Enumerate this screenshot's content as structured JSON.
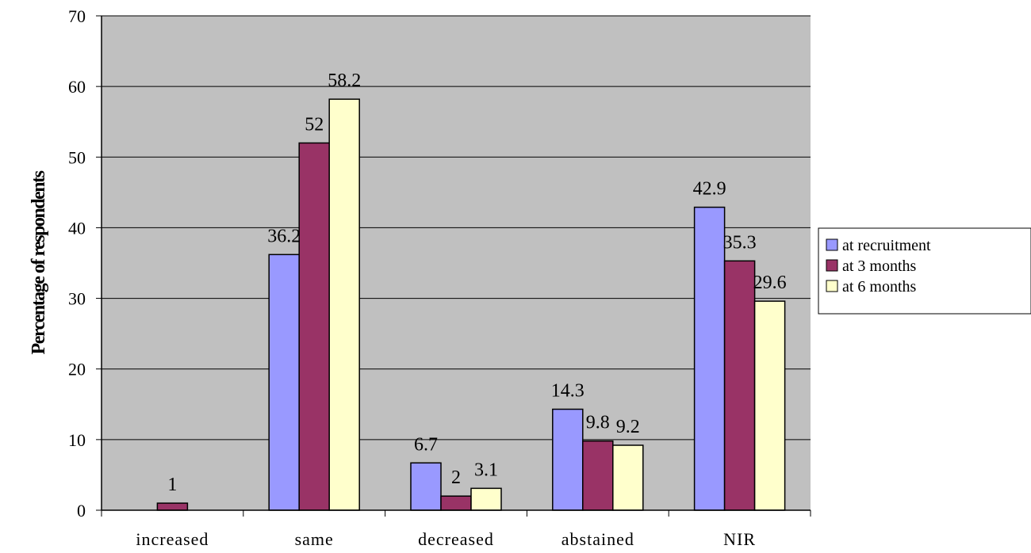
{
  "chart_data": {
    "type": "bar",
    "title": "",
    "xlabel": "",
    "ylabel": "Percentage of respondents",
    "ylim": [
      0,
      70
    ],
    "yticks": [
      0,
      10,
      20,
      30,
      40,
      50,
      60,
      70
    ],
    "grid": true,
    "legend_position": "right",
    "categories": [
      "increased",
      "same",
      "decreased",
      "abstained",
      "NIR"
    ],
    "series": [
      {
        "name": "at recruitment",
        "color": "#9999ff",
        "values": [
          null,
          36.2,
          6.7,
          14.3,
          42.9
        ]
      },
      {
        "name": "at 3 months",
        "color": "#993366",
        "values": [
          1,
          52,
          2,
          9.8,
          35.3
        ]
      },
      {
        "name": "at 6 months",
        "color": "#ffffcc",
        "values": [
          null,
          58.2,
          3.1,
          9.2,
          29.6
        ]
      }
    ],
    "plot_background": "#c0c0c0"
  }
}
